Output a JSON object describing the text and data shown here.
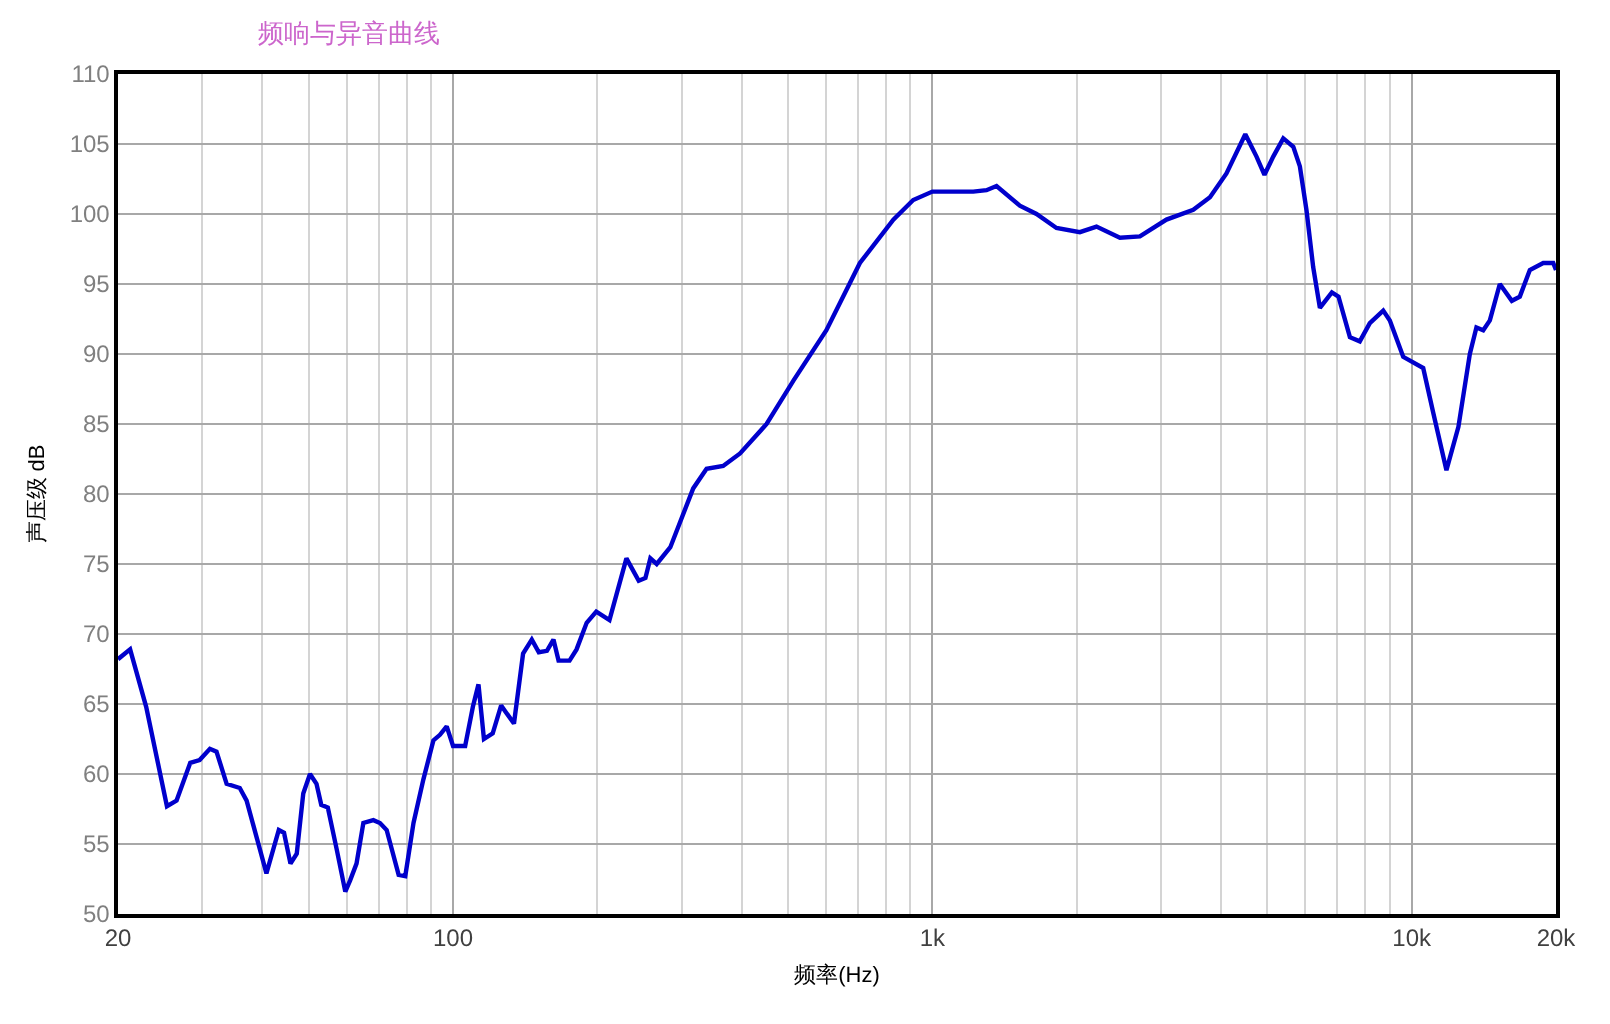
{
  "chart_data": {
    "type": "line",
    "title": "频响与异音曲线",
    "xlabel": "频率(Hz)",
    "ylabel": "声压级 dB",
    "log": "x",
    "grid": true,
    "color": "#0000cc",
    "xlim": [
      20,
      20000
    ],
    "xticks": [
      20,
      {
        "value": 30,
        "label": null
      },
      {
        "value": 40,
        "label": null
      },
      {
        "value": 50,
        "label": null
      },
      {
        "value": 60,
        "label": null
      },
      {
        "value": 70,
        "label": null
      },
      {
        "value": 80,
        "label": null
      },
      {
        "value": 90,
        "label": null
      },
      100,
      {
        "value": 200,
        "label": null
      },
      {
        "value": 300,
        "label": null
      },
      {
        "value": 400,
        "label": null
      },
      {
        "value": 500,
        "label": null
      },
      {
        "value": 600,
        "label": null
      },
      {
        "value": 700,
        "label": null
      },
      {
        "value": 800,
        "label": null
      },
      {
        "value": 900,
        "label": null
      },
      {
        "value": 1000,
        "label": "1k"
      },
      {
        "value": 2000,
        "label": null
      },
      {
        "value": 3000,
        "label": null
      },
      {
        "value": 4000,
        "label": null
      },
      {
        "value": 5000,
        "label": null
      },
      {
        "value": 6000,
        "label": null
      },
      {
        "value": 7000,
        "label": null
      },
      {
        "value": 8000,
        "label": null
      },
      {
        "value": 9000,
        "label": null
      },
      {
        "value": 10000,
        "label": "10k"
      },
      {
        "value": 20000,
        "label": "20k"
      }
    ],
    "ylim": [
      50,
      110
    ],
    "yticks": [
      50,
      55,
      60,
      65,
      70,
      75,
      80,
      85,
      90,
      95,
      100,
      105,
      110
    ],
    "x": [
      20,
      21.2,
      22.9,
      25.3,
      26.5,
      28.3,
      29.6,
      31.1,
      32.1,
      33.7,
      35.9,
      37.1,
      40.8,
      43.3,
      44.4,
      45.8,
      47.2,
      48.7,
      50.3,
      51.9,
      53.1,
      54.8,
      57.2,
      59.6,
      61,
      62.9,
      65,
      68.2,
      70.4,
      72.7,
      77,
      79.5,
      82.7,
      86.7,
      91,
      93.9,
      97,
      100,
      106,
      110,
      113,
      116,
      121,
      126,
      129,
      134,
      140,
      146,
      151,
      157,
      162,
      166,
      175,
      181,
      190,
      199,
      212,
      230,
      244,
      252,
      258,
      266,
      284,
      317,
      338,
      366,
      397,
      451,
      513,
      601,
      706,
      829,
      912,
      1000,
      1217,
      1297,
      1361,
      1522,
      1649,
      1815,
      2031,
      2200,
      2462,
      2710,
      3079,
      3502,
      3794,
      4107,
      4496,
      4745,
      4930,
      5142,
      5396,
      5662,
      5844,
      6031,
      6230,
      6434,
      6815,
      7035,
      7431,
      7793,
      8177,
      8722,
      9003,
      9600,
      10568,
      11090,
      11816,
      12516,
      13221,
      13646,
      14100,
      14556,
      15270,
      16176,
      16810,
      17638,
      18811,
      19734,
      20000
    ],
    "values": [
      68.2,
      68.9,
      64.8,
      57.7,
      58.1,
      60.8,
      61.0,
      61.8,
      61.6,
      59.3,
      59.0,
      58.1,
      52.9,
      56.0,
      55.8,
      53.6,
      54.3,
      58.6,
      60.0,
      59.3,
      57.8,
      57.6,
      54.6,
      51.6,
      52.4,
      53.6,
      56.5,
      56.7,
      56.5,
      56.0,
      52.8,
      52.7,
      56.5,
      59.6,
      62.4,
      62.8,
      63.4,
      62.0,
      62.0,
      64.8,
      66.4,
      62.5,
      62.9,
      64.9,
      64.4,
      63.6,
      68.6,
      69.6,
      68.7,
      68.8,
      69.6,
      68.1,
      68.1,
      68.9,
      70.8,
      71.6,
      71.0,
      75.4,
      73.8,
      74.0,
      75.4,
      75.0,
      76.2,
      80.4,
      81.8,
      82.0,
      82.9,
      85.0,
      88.1,
      91.7,
      96.5,
      99.6,
      101.0,
      101.6,
      101.6,
      101.7,
      102.0,
      100.6,
      100.0,
      99.0,
      98.7,
      99.1,
      98.3,
      98.4,
      99.6,
      100.3,
      101.2,
      102.9,
      105.7,
      104.1,
      102.8,
      104.1,
      105.4,
      104.8,
      103.4,
      100.3,
      96.2,
      93.3,
      94.4,
      94.1,
      91.2,
      90.9,
      92.2,
      93.1,
      92.4,
      89.8,
      89.0,
      85.8,
      81.7,
      84.8,
      90.0,
      91.9,
      91.7,
      92.4,
      95.0,
      93.8,
      94.1,
      96.0,
      96.5,
      96.5,
      96.0
    ]
  }
}
